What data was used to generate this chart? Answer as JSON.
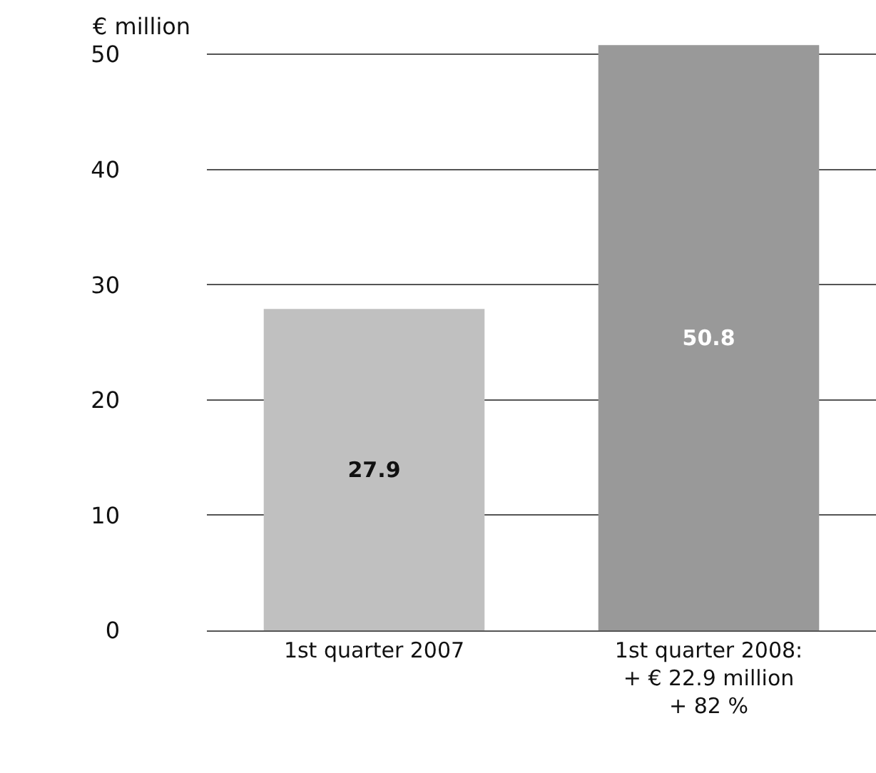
{
  "chart_data": {
    "type": "bar",
    "ylabel": "€ million",
    "categories": [
      "1st quarter 2007",
      "1st quarter 2008:\n+ € 22.9 million\n+ 82 %"
    ],
    "values": [
      27.9,
      50.8
    ],
    "colors": [
      "#c0c0c0",
      "#999999"
    ],
    "ylim": [
      0,
      51
    ],
    "yticks": [
      0,
      10,
      20,
      30,
      40,
      50
    ],
    "grid": "y",
    "data_labels": true
  }
}
